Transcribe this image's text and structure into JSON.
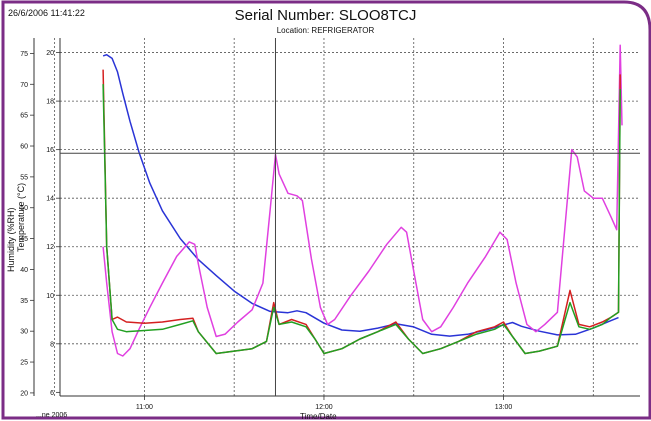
{
  "header": {
    "timestamp": "26/6/2006 11:41:22",
    "title": "Serial Number: SLOO8TCJ",
    "subtitle": "Location: REFRIGERATOR"
  },
  "footer": {
    "date_label": "...ne 2006",
    "xlabel": "Time/Date"
  },
  "colors": {
    "border": "#7b2d86",
    "grid": "#555555",
    "humidity": "#2a34d6",
    "temperature_magenta": "#e040e0",
    "temperature_red": "#d42020",
    "temperature_green": "#22a022"
  },
  "chart_data": {
    "type": "line",
    "title": "Serial Number: SLOO8TCJ",
    "subtitle": "Location: REFRIGERATOR",
    "xlabel": "Time/Date",
    "ylabel_left": "Humidity (%RH)",
    "ylabel_right": "Temperature (°C)",
    "x_unit": "hours",
    "xlim": [
      10.53,
      13.76
    ],
    "x_ticks": [
      11.0,
      12.0,
      13.0
    ],
    "x_tick_labels": [
      "11:00",
      "12:00",
      "13:00"
    ],
    "humidity_ylim": [
      19.5,
      77.5
    ],
    "humidity_ticks": [
      20,
      25,
      30,
      35,
      40,
      45,
      50,
      55,
      60,
      65,
      70,
      75
    ],
    "temp_ylim": [
      5.85,
      20.6
    ],
    "temp_ticks": [
      6,
      8,
      10,
      12,
      14,
      16,
      18,
      20
    ],
    "grid": true,
    "grid_x": [
      10.5,
      11.0,
      11.5,
      12.0,
      12.5,
      13.0,
      13.5
    ],
    "grid_temp": [
      8,
      10,
      12,
      14,
      16,
      18,
      20
    ],
    "cursor": {
      "x": 11.73,
      "temp": 15.85
    },
    "series": [
      {
        "axis": "humidity",
        "color": "#2a34d6",
        "points": [
          [
            10.77,
            74.6
          ],
          [
            10.79,
            74.8
          ],
          [
            10.82,
            74.2
          ],
          [
            10.85,
            72
          ],
          [
            10.88,
            68.5
          ],
          [
            10.92,
            64
          ],
          [
            10.97,
            59
          ],
          [
            11.03,
            54
          ],
          [
            11.1,
            49.5
          ],
          [
            11.2,
            45
          ],
          [
            11.3,
            41.6
          ],
          [
            11.4,
            39
          ],
          [
            11.5,
            36.5
          ],
          [
            11.6,
            34.5
          ],
          [
            11.7,
            33.2
          ],
          [
            11.8,
            33
          ],
          [
            11.85,
            33.3
          ],
          [
            11.9,
            33
          ],
          [
            12.0,
            31.3
          ],
          [
            12.1,
            30.2
          ],
          [
            12.2,
            30
          ],
          [
            12.3,
            30.5
          ],
          [
            12.4,
            31.2
          ],
          [
            12.5,
            30.7
          ],
          [
            12.6,
            29.5
          ],
          [
            12.7,
            29.2
          ],
          [
            12.8,
            29.5
          ],
          [
            12.9,
            30.2
          ],
          [
            13.0,
            31
          ],
          [
            13.05,
            31.4
          ],
          [
            13.1,
            30.8
          ],
          [
            13.2,
            30
          ],
          [
            13.3,
            29.4
          ],
          [
            13.4,
            29.5
          ],
          [
            13.5,
            30.5
          ],
          [
            13.58,
            31.5
          ],
          [
            13.64,
            32.2
          ]
        ]
      },
      {
        "axis": "temperature",
        "color": "#e040e0",
        "points": [
          [
            10.77,
            12
          ],
          [
            10.79,
            10.5
          ],
          [
            10.82,
            8.5
          ],
          [
            10.85,
            7.6
          ],
          [
            10.88,
            7.5
          ],
          [
            10.92,
            7.8
          ],
          [
            10.97,
            8.6
          ],
          [
            11.03,
            9.5
          ],
          [
            11.1,
            10.5
          ],
          [
            11.18,
            11.6
          ],
          [
            11.25,
            12.2
          ],
          [
            11.28,
            12.1
          ],
          [
            11.3,
            11.3
          ],
          [
            11.35,
            9.5
          ],
          [
            11.4,
            8.3
          ],
          [
            11.45,
            8.4
          ],
          [
            11.52,
            8.9
          ],
          [
            11.6,
            9.4
          ],
          [
            11.66,
            10.5
          ],
          [
            11.7,
            13.5
          ],
          [
            11.73,
            15.8
          ],
          [
            11.75,
            15
          ],
          [
            11.8,
            14.2
          ],
          [
            11.85,
            14.1
          ],
          [
            11.88,
            13.9
          ],
          [
            11.93,
            11.5
          ],
          [
            11.98,
            9.5
          ],
          [
            12.02,
            8.8
          ],
          [
            12.06,
            9
          ],
          [
            12.15,
            10
          ],
          [
            12.25,
            11
          ],
          [
            12.35,
            12.1
          ],
          [
            12.43,
            12.8
          ],
          [
            12.46,
            12.6
          ],
          [
            12.5,
            11
          ],
          [
            12.55,
            9
          ],
          [
            12.6,
            8.5
          ],
          [
            12.65,
            8.7
          ],
          [
            12.72,
            9.5
          ],
          [
            12.8,
            10.5
          ],
          [
            12.9,
            11.6
          ],
          [
            12.98,
            12.6
          ],
          [
            13.02,
            12.3
          ],
          [
            13.07,
            10.5
          ],
          [
            13.13,
            8.8
          ],
          [
            13.18,
            8.5
          ],
          [
            13.23,
            8.8
          ],
          [
            13.3,
            9.3
          ],
          [
            13.38,
            16
          ],
          [
            13.41,
            15.7
          ],
          [
            13.45,
            14.3
          ],
          [
            13.5,
            14
          ],
          [
            13.55,
            14
          ],
          [
            13.6,
            13.2
          ],
          [
            13.63,
            12.7
          ],
          [
            13.65,
            20.3
          ],
          [
            13.66,
            17
          ]
        ]
      },
      {
        "axis": "temperature",
        "color": "#d42020",
        "points": [
          [
            10.77,
            19.3
          ],
          [
            10.79,
            12
          ],
          [
            10.82,
            9
          ],
          [
            10.85,
            9.1
          ],
          [
            10.9,
            8.9
          ],
          [
            11.0,
            8.85
          ],
          [
            11.1,
            8.9
          ],
          [
            11.2,
            9
          ],
          [
            11.27,
            9.05
          ],
          [
            11.3,
            8.5
          ],
          [
            11.4,
            7.6
          ],
          [
            11.5,
            7.7
          ],
          [
            11.6,
            7.8
          ],
          [
            11.68,
            8.1
          ],
          [
            11.72,
            9.7
          ],
          [
            11.75,
            8.8
          ],
          [
            11.82,
            9
          ],
          [
            11.9,
            8.8
          ],
          [
            11.95,
            8.2
          ],
          [
            12.0,
            7.6
          ],
          [
            12.1,
            7.8
          ],
          [
            12.2,
            8.2
          ],
          [
            12.3,
            8.5
          ],
          [
            12.4,
            8.9
          ],
          [
            12.47,
            8.2
          ],
          [
            12.55,
            7.6
          ],
          [
            12.65,
            7.8
          ],
          [
            12.75,
            8.1
          ],
          [
            12.85,
            8.5
          ],
          [
            12.95,
            8.7
          ],
          [
            13.0,
            8.9
          ],
          [
            13.05,
            8.3
          ],
          [
            13.12,
            7.6
          ],
          [
            13.2,
            7.7
          ],
          [
            13.3,
            7.9
          ],
          [
            13.37,
            10.2
          ],
          [
            13.42,
            8.8
          ],
          [
            13.48,
            8.7
          ],
          [
            13.55,
            8.9
          ],
          [
            13.6,
            9.1
          ],
          [
            13.64,
            9.3
          ],
          [
            13.65,
            19.1
          ]
        ]
      },
      {
        "axis": "temperature",
        "color": "#22a022",
        "points": [
          [
            10.77,
            18.7
          ],
          [
            10.79,
            12
          ],
          [
            10.82,
            9
          ],
          [
            10.85,
            8.6
          ],
          [
            10.9,
            8.5
          ],
          [
            11.0,
            8.55
          ],
          [
            11.1,
            8.6
          ],
          [
            11.2,
            8.8
          ],
          [
            11.27,
            8.95
          ],
          [
            11.3,
            8.5
          ],
          [
            11.4,
            7.6
          ],
          [
            11.5,
            7.7
          ],
          [
            11.6,
            7.8
          ],
          [
            11.68,
            8.1
          ],
          [
            11.72,
            9.5
          ],
          [
            11.75,
            8.8
          ],
          [
            11.82,
            8.9
          ],
          [
            11.9,
            8.7
          ],
          [
            11.95,
            8.2
          ],
          [
            12.0,
            7.6
          ],
          [
            12.1,
            7.8
          ],
          [
            12.2,
            8.2
          ],
          [
            12.3,
            8.5
          ],
          [
            12.4,
            8.8
          ],
          [
            12.47,
            8.2
          ],
          [
            12.55,
            7.6
          ],
          [
            12.65,
            7.8
          ],
          [
            12.75,
            8.1
          ],
          [
            12.85,
            8.4
          ],
          [
            12.95,
            8.6
          ],
          [
            13.0,
            8.8
          ],
          [
            13.05,
            8.3
          ],
          [
            13.12,
            7.6
          ],
          [
            13.2,
            7.7
          ],
          [
            13.3,
            7.9
          ],
          [
            13.37,
            9.7
          ],
          [
            13.42,
            8.7
          ],
          [
            13.48,
            8.6
          ],
          [
            13.55,
            8.8
          ],
          [
            13.6,
            9.1
          ],
          [
            13.64,
            9.3
          ],
          [
            13.65,
            18.5
          ]
        ]
      }
    ]
  }
}
